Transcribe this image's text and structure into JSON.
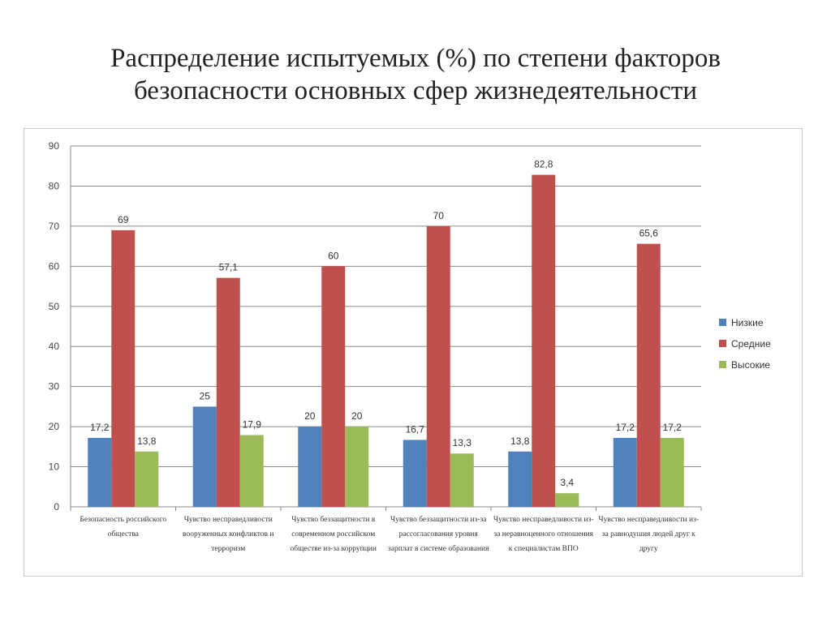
{
  "slide": {
    "title_line1": "Распределение испытуемых (%) по степени факторов",
    "title_line2": "безопасности основных сфер жизнедеятельности"
  },
  "chart_data": {
    "type": "bar",
    "title": "",
    "xlabel": "",
    "ylabel": "",
    "ylim": [
      0,
      90
    ],
    "yticks": [
      0,
      10,
      20,
      30,
      40,
      50,
      60,
      70,
      80,
      90
    ],
    "grid": true,
    "legend_position": "right",
    "categories": [
      [
        "Безопасность российского",
        "общества"
      ],
      [
        "Чувство несправедливости",
        "вооруженных конфликтов и",
        "терроризм"
      ],
      [
        "Чувство беззащитности в",
        "современном российском",
        "обществе из-за коррупции"
      ],
      [
        "Чувство беззащитности из-за",
        "рассогласования уровня",
        "зарплат в системе образования"
      ],
      [
        "Чувство несправедливости из-",
        "за неравноценного отношения",
        "к специалистам ВПО"
      ],
      [
        "Чувство несправедливости из-",
        "за равнодушия людей друг к",
        "другу"
      ]
    ],
    "series": [
      {
        "name": "Низкие",
        "color": "#4F81BD",
        "values": [
          17.2,
          25,
          20,
          16.7,
          13.8,
          17.2
        ],
        "labels": [
          "17,2",
          "25",
          "20",
          "16,7",
          "13,8",
          "17,2"
        ]
      },
      {
        "name": "Средние",
        "color": "#C0504D",
        "values": [
          69,
          57.1,
          60,
          70,
          82.8,
          65.6
        ],
        "labels": [
          "69",
          "57,1",
          "60",
          "70",
          "82,8",
          "65,6"
        ]
      },
      {
        "name": "Высокие",
        "color": "#9BBB59",
        "values": [
          13.8,
          17.9,
          20,
          13.3,
          3.4,
          17.2
        ],
        "labels": [
          "13,8",
          "17,9",
          "20",
          "13,3",
          "3,4",
          "17,2"
        ]
      }
    ]
  }
}
